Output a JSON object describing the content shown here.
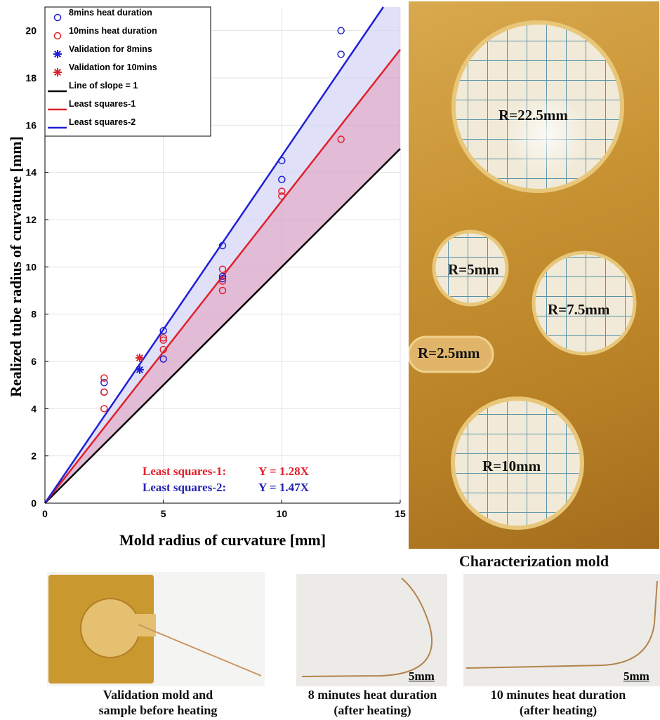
{
  "chart_data": {
    "type": "scatter",
    "xlabel": "Mold radius of curvature [mm]",
    "ylabel": "Realized tube radius of curvature [mm]",
    "xlim": [
      0,
      15
    ],
    "ylim": [
      0,
      21
    ],
    "x_ticks": [
      0,
      5,
      10,
      15
    ],
    "y_ticks": [
      0,
      2,
      4,
      6,
      8,
      10,
      12,
      14,
      16,
      18,
      20
    ],
    "grid": true,
    "legend_position": "top-left",
    "series": [
      {
        "name": "8mins heat duration",
        "kind": "scatter",
        "marker": "circle",
        "color": "#1f1fd6",
        "x": [
          2.5,
          2.5,
          5,
          5,
          7.5,
          7.5,
          7.5,
          10,
          10,
          12.5,
          12.5
        ],
        "y": [
          4.7,
          5.1,
          6.1,
          7.3,
          9.6,
          10.9,
          9.5,
          13.7,
          14.5,
          19.0,
          20.0
        ]
      },
      {
        "name": "10mins heat duration",
        "kind": "scatter",
        "marker": "circle",
        "color": "#e0202a",
        "x": [
          2.5,
          2.5,
          2.5,
          5,
          5,
          5,
          7.5,
          7.5,
          7.5,
          10,
          10,
          12.5
        ],
        "y": [
          4.0,
          4.7,
          5.3,
          6.5,
          6.9,
          7.0,
          9.0,
          9.4,
          9.9,
          13.0,
          13.2,
          15.4
        ]
      },
      {
        "name": "Validation for 8mins",
        "kind": "scatter",
        "marker": "asterisk",
        "color": "#1f1fd6",
        "x": [
          4.0
        ],
        "y": [
          5.65
        ]
      },
      {
        "name": "Validation for 10mins",
        "kind": "scatter",
        "marker": "asterisk",
        "color": "#e0202a",
        "x": [
          4.0
        ],
        "y": [
          6.15
        ]
      },
      {
        "name": "Line of slope = 1",
        "kind": "line",
        "slope": 1.0,
        "color": "#000000"
      },
      {
        "name": "Least squares-1",
        "kind": "line",
        "slope": 1.28,
        "color": "#e0202a"
      },
      {
        "name": "Least squares-2",
        "kind": "line",
        "slope": 1.47,
        "color": "#1f1fd6"
      }
    ],
    "shading": [
      {
        "between_slopes": [
          1.0,
          1.28
        ],
        "color": "#d8a6c8"
      },
      {
        "between_slopes": [
          1.28,
          1.47
        ],
        "color": "#d6d6f5"
      }
    ],
    "annotations": [
      {
        "label": "Least squares-1:",
        "equation": "Y = 1.28X",
        "color": "#e0202a"
      },
      {
        "label": "Least squares-2:",
        "equation": "Y = 1.47X",
        "color": "#2323b0"
      }
    ]
  },
  "mold": {
    "labels": [
      "R=22.5mm",
      "R=5mm",
      "R=7.5mm",
      "R=2.5mm",
      "R=10mm"
    ],
    "caption": "Characterization mold"
  },
  "photos": {
    "validation_caption_line1": "Validation mold and",
    "validation_caption_line2": "sample before heating",
    "eight_caption_line1": "8 minutes heat duration",
    "eight_caption_line2": "(after heating)",
    "ten_caption_line1": "10 minutes heat duration",
    "ten_caption_line2": "(after heating)",
    "scale_label": "5mm"
  }
}
